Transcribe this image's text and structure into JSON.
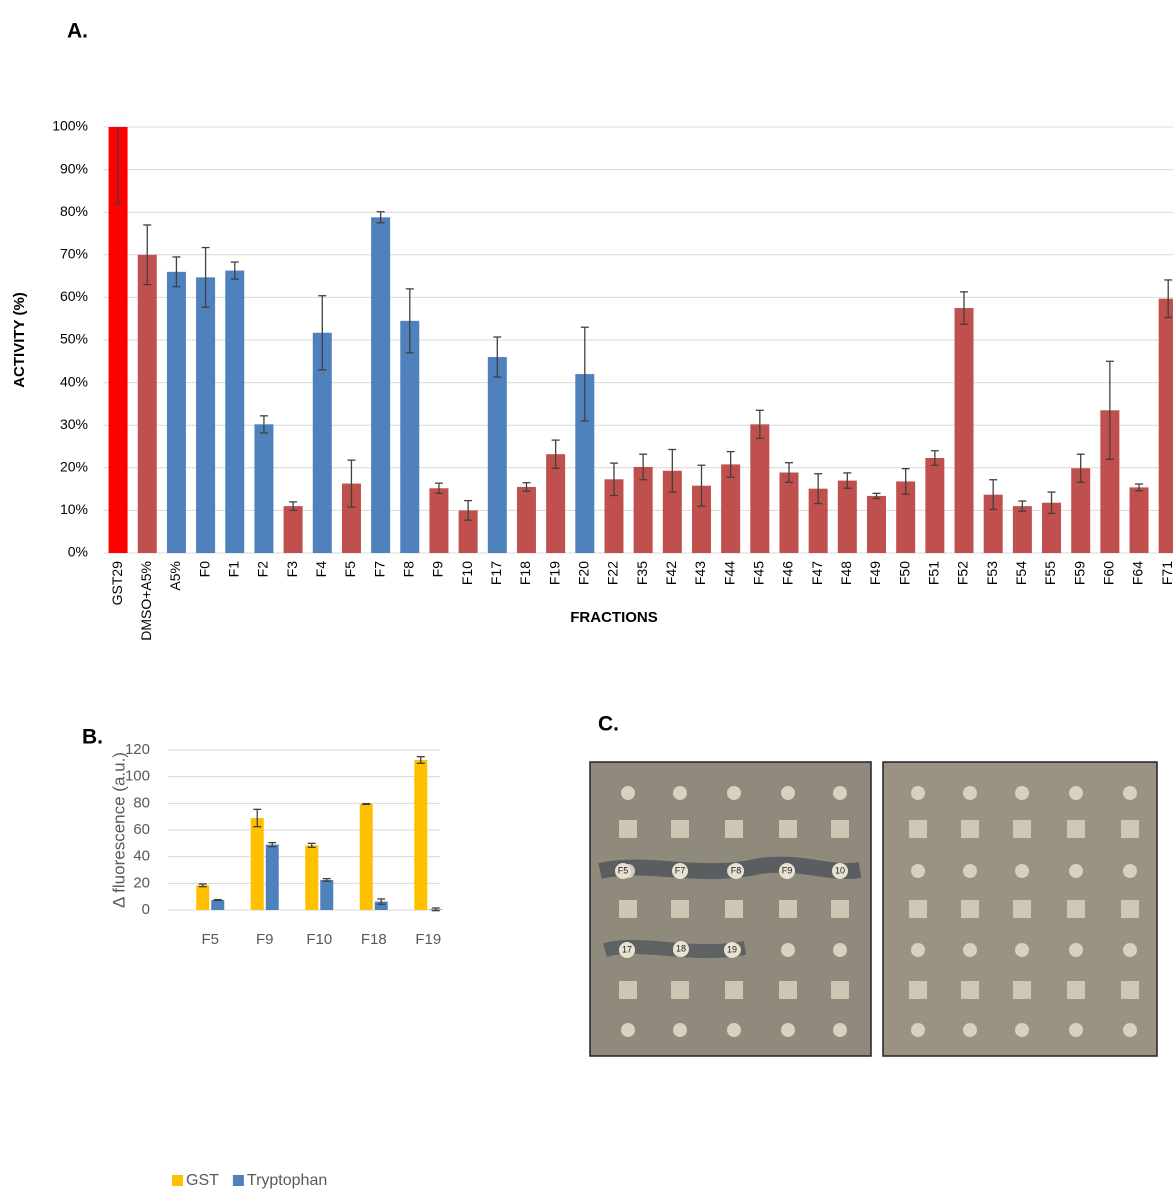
{
  "chart_data": [
    {
      "type": "bar",
      "panel": "A.",
      "ylabel": "ACTIVITY (%)",
      "xlabel": "FRACTIONS",
      "categories": [
        "GST29",
        "DMSO+A5%",
        "A5%",
        "F0",
        "F1",
        "F2",
        "F3",
        "F4",
        "F5",
        "F7",
        "F8",
        "F9",
        "F10",
        "F17",
        "F18",
        "F19",
        "F20",
        "F22",
        "F35",
        "F42",
        "F43",
        "F44",
        "F45",
        "F46",
        "F47",
        "F48",
        "F49",
        "F50",
        "F51",
        "F52",
        "F53",
        "F54",
        "F55",
        "F59",
        "F60",
        "F64",
        "F71"
      ],
      "values": [
        100,
        70,
        66,
        64.7,
        66.3,
        30.2,
        11,
        51.7,
        16.3,
        78.8,
        54.5,
        15.2,
        10,
        46,
        15.5,
        23.2,
        42,
        17.3,
        20.2,
        19.3,
        15.8,
        20.8,
        30.2,
        18.9,
        15.1,
        17,
        13.4,
        16.8,
        22.3,
        57.5,
        13.7,
        11,
        11.8,
        19.9,
        33.5,
        15.4,
        59.7
      ],
      "errors": [
        18,
        7,
        3.5,
        7,
        2,
        2,
        1,
        8.7,
        5.5,
        1.3,
        7.5,
        1.2,
        2.3,
        4.7,
        1,
        3.3,
        11,
        3.8,
        3,
        5,
        4.8,
        3,
        3.3,
        2.3,
        3.5,
        1.8,
        0.6,
        3,
        1.7,
        3.8,
        3.5,
        1.2,
        2.5,
        3.3,
        11.5,
        0.8,
        4.4
      ],
      "colors": [
        "#ff0000",
        "#c0504d",
        "#4f81bd",
        "#4f81bd",
        "#4f81bd",
        "#4f81bd",
        "#c0504d",
        "#4f81bd",
        "#c0504d",
        "#4f81bd",
        "#4f81bd",
        "#c0504d",
        "#c0504d",
        "#4f81bd",
        "#c0504d",
        "#c0504d",
        "#4f81bd",
        "#c0504d",
        "#c0504d",
        "#c0504d",
        "#c0504d",
        "#c0504d",
        "#c0504d",
        "#c0504d",
        "#c0504d",
        "#c0504d",
        "#c0504d",
        "#c0504d",
        "#c0504d",
        "#c0504d",
        "#c0504d",
        "#c0504d",
        "#c0504d",
        "#c0504d",
        "#c0504d",
        "#c0504d",
        "#c0504d"
      ],
      "ylim": [
        0,
        100
      ],
      "yticks": [
        {
          "value": 0,
          "label": "0%"
        },
        {
          "value": 10,
          "label": "10%"
        },
        {
          "value": 20,
          "label": "20%"
        },
        {
          "value": 30,
          "label": "30%"
        },
        {
          "value": 40,
          "label": "40%"
        },
        {
          "value": 50,
          "label": "50%"
        },
        {
          "value": 60,
          "label": "60%"
        },
        {
          "value": 70,
          "label": "70%"
        },
        {
          "value": 80,
          "label": "80%"
        },
        {
          "value": 90,
          "label": "90%"
        },
        {
          "value": 100,
          "label": "100%"
        }
      ],
      "grid": true
    },
    {
      "type": "grouped_bar",
      "panel": "B.",
      "ylabel": "Δ fluorescence (a.u.)",
      "categories": [
        "F5",
        "F9",
        "F10",
        "F18",
        "F19"
      ],
      "series": [
        {
          "name": "GST",
          "color": "#ffc000",
          "values": [
            18.5,
            69,
            48.5,
            79.5,
            112.5
          ],
          "errors": [
            1,
            6.5,
            1.5,
            0.3,
            2.5
          ]
        },
        {
          "name": "Tryptophan",
          "color": "#4f81bd",
          "values": [
            7.5,
            49,
            22.5,
            6.3,
            0.5
          ],
          "errors": [
            0.3,
            1.5,
            1,
            2,
            1
          ]
        }
      ],
      "ylim": [
        0,
        120
      ],
      "yticks": [
        0,
        20,
        40,
        60,
        80,
        100,
        120
      ],
      "grid": true,
      "legend": "bottom"
    }
  ],
  "photo": {
    "panel": "C.",
    "spots": [
      "F5",
      "F7",
      "F8",
      "F9",
      "10",
      "17",
      "18",
      "19"
    ]
  }
}
